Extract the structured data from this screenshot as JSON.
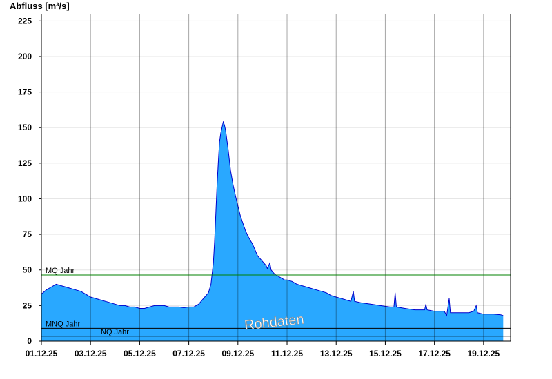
{
  "chart_data": {
    "type": "area",
    "title": "",
    "ylabel": "Abfluss [m³/s]",
    "xlabel": "",
    "ylim": [
      0,
      230
    ],
    "y_ticks": [
      0,
      25,
      50,
      75,
      100,
      125,
      150,
      175,
      200,
      225
    ],
    "x_tick_labels": [
      "01.12.25",
      "03.12.25",
      "05.12.25",
      "07.12.25",
      "09.12.25",
      "11.12.25",
      "13.12.25",
      "15.12.25",
      "17.12.25",
      "19.12.25"
    ],
    "x_tick_days": [
      1,
      3,
      5,
      7,
      9,
      11,
      13,
      15,
      17,
      19
    ],
    "xlim_days": [
      1,
      20.1
    ],
    "grid": true,
    "series": [
      {
        "name": "",
        "color": "#29a8ff",
        "line_color": "#0000cc",
        "points": [
          [
            1.0,
            33
          ],
          [
            1.2,
            36
          ],
          [
            1.4,
            38
          ],
          [
            1.6,
            40
          ],
          [
            1.8,
            39
          ],
          [
            2.0,
            38
          ],
          [
            2.2,
            37
          ],
          [
            2.4,
            36
          ],
          [
            2.6,
            35
          ],
          [
            2.8,
            33
          ],
          [
            3.0,
            31
          ],
          [
            3.2,
            30
          ],
          [
            3.4,
            29
          ],
          [
            3.6,
            28
          ],
          [
            3.8,
            27
          ],
          [
            4.0,
            26
          ],
          [
            4.2,
            25
          ],
          [
            4.4,
            25
          ],
          [
            4.6,
            24
          ],
          [
            4.8,
            24
          ],
          [
            5.0,
            23
          ],
          [
            5.2,
            23
          ],
          [
            5.4,
            24
          ],
          [
            5.6,
            25
          ],
          [
            5.8,
            25
          ],
          [
            6.0,
            25
          ],
          [
            6.2,
            24
          ],
          [
            6.4,
            24
          ],
          [
            6.6,
            24
          ],
          [
            6.8,
            23.5
          ],
          [
            7.0,
            24
          ],
          [
            7.2,
            24
          ],
          [
            7.4,
            26
          ],
          [
            7.6,
            30
          ],
          [
            7.8,
            34
          ],
          [
            7.9,
            40
          ],
          [
            8.0,
            55
          ],
          [
            8.05,
            70
          ],
          [
            8.1,
            90
          ],
          [
            8.15,
            110
          ],
          [
            8.2,
            125
          ],
          [
            8.25,
            140
          ],
          [
            8.3,
            146
          ],
          [
            8.35,
            150
          ],
          [
            8.4,
            154
          ],
          [
            8.45,
            152
          ],
          [
            8.5,
            148
          ],
          [
            8.6,
            135
          ],
          [
            8.7,
            120
          ],
          [
            8.8,
            110
          ],
          [
            8.9,
            102
          ],
          [
            9.0,
            95
          ],
          [
            9.1,
            88
          ],
          [
            9.2,
            83
          ],
          [
            9.3,
            78
          ],
          [
            9.4,
            74
          ],
          [
            9.5,
            71
          ],
          [
            9.6,
            68
          ],
          [
            9.7,
            64
          ],
          [
            9.8,
            60
          ],
          [
            9.9,
            58
          ],
          [
            10.0,
            56
          ],
          [
            10.1,
            54
          ],
          [
            10.15,
            53
          ],
          [
            10.2,
            51
          ],
          [
            10.3,
            55
          ],
          [
            10.35,
            50
          ],
          [
            10.5,
            47
          ],
          [
            10.7,
            45
          ],
          [
            10.9,
            43
          ],
          [
            11.0,
            43
          ],
          [
            11.2,
            42
          ],
          [
            11.4,
            40
          ],
          [
            11.6,
            39
          ],
          [
            11.8,
            38
          ],
          [
            12.0,
            37
          ],
          [
            12.2,
            36
          ],
          [
            12.4,
            35
          ],
          [
            12.6,
            34
          ],
          [
            12.8,
            32
          ],
          [
            13.0,
            31
          ],
          [
            13.2,
            30
          ],
          [
            13.4,
            29
          ],
          [
            13.6,
            28
          ],
          [
            13.7,
            35
          ],
          [
            13.75,
            28
          ],
          [
            14.0,
            27
          ],
          [
            14.4,
            26
          ],
          [
            14.8,
            25
          ],
          [
            15.2,
            24
          ],
          [
            15.35,
            24
          ],
          [
            15.4,
            34
          ],
          [
            15.45,
            24
          ],
          [
            15.8,
            23
          ],
          [
            16.2,
            22
          ],
          [
            16.6,
            22
          ],
          [
            16.65,
            26
          ],
          [
            16.7,
            22
          ],
          [
            17.0,
            21
          ],
          [
            17.4,
            21
          ],
          [
            17.5,
            18
          ],
          [
            17.6,
            30
          ],
          [
            17.65,
            20
          ],
          [
            18.0,
            20
          ],
          [
            18.4,
            20
          ],
          [
            18.6,
            21
          ],
          [
            18.7,
            25
          ],
          [
            18.75,
            20
          ],
          [
            19.0,
            19
          ],
          [
            19.4,
            19
          ],
          [
            19.7,
            18.5
          ],
          [
            19.8,
            18
          ]
        ]
      }
    ],
    "reference_lines": [
      {
        "label": "MQ Jahr",
        "value": 46.5,
        "color": "#008000"
      },
      {
        "label": "MNQ Jahr",
        "value": 9,
        "color": "#000000"
      },
      {
        "label": "NQ Jahr",
        "value": 3.5,
        "color": "#000000"
      }
    ],
    "watermark": "Rohdaten"
  }
}
